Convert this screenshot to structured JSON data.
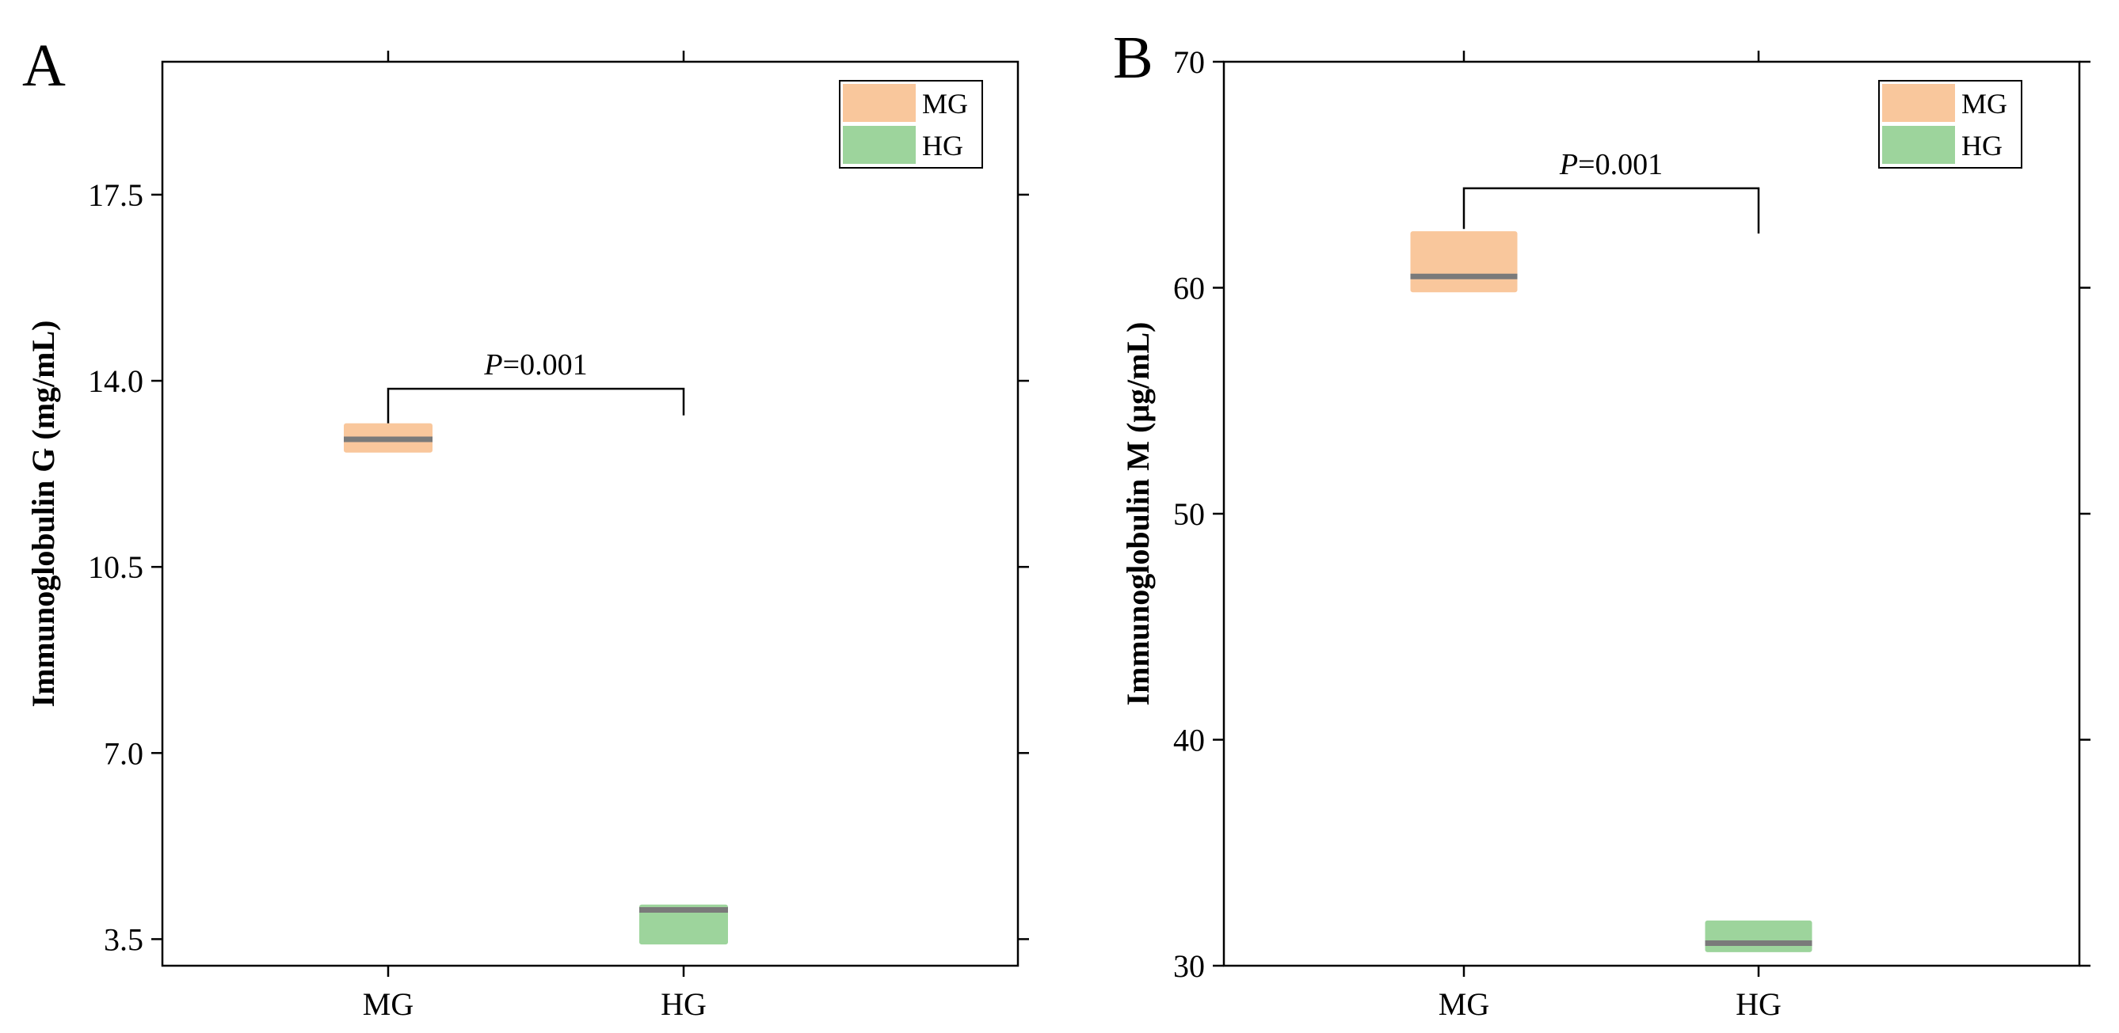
{
  "colors": {
    "MG": "#f9c79c",
    "HG": "#9dd49c",
    "median": "#7a7a7a",
    "axis": "#000000"
  },
  "chart_data": [
    {
      "type": "box",
      "panel_label": "A",
      "ylabel": "Immunoglobulin G (mg/mL)",
      "xlabel": "",
      "categories": [
        "MG",
        "HG"
      ],
      "ylim": [
        3.0,
        20.0
      ],
      "yticks": [
        3.5,
        7.0,
        10.5,
        14.0,
        17.5
      ],
      "ytick_labels": [
        "3.5",
        "7.0",
        "10.5",
        "14.0",
        "17.5"
      ],
      "boxes": [
        {
          "name": "MG",
          "q1": 12.65,
          "median": 12.9,
          "q3": 13.2,
          "min": 12.6,
          "max": 13.25
        },
        {
          "name": "HG",
          "q1": 3.4,
          "median": 4.05,
          "q3": 4.15,
          "min": 3.4,
          "max": 4.2
        }
      ],
      "legend": [
        "MG",
        "HG"
      ],
      "annotation": {
        "italic": "P",
        "text": "=0.001",
        "y_bracket": 13.85,
        "y_left_end": 13.2,
        "y_right_end": 13.35
      }
    },
    {
      "type": "box",
      "panel_label": "B",
      "ylabel": "Immunoglobulin M (μg/mL)",
      "xlabel": "",
      "categories": [
        "MG",
        "HG"
      ],
      "ylim": [
        30,
        70
      ],
      "yticks": [
        30,
        40,
        50,
        60,
        70
      ],
      "ytick_labels": [
        "30",
        "40",
        "50",
        "60",
        "70"
      ],
      "boxes": [
        {
          "name": "MG",
          "q1": 59.8,
          "median": 60.5,
          "q3": 62.5,
          "min": 59.8,
          "max": 62.5
        },
        {
          "name": "HG",
          "q1": 30.6,
          "median": 31.0,
          "q3": 32.0,
          "min": 30.6,
          "max": 32.0
        }
      ],
      "legend": [
        "MG",
        "HG"
      ],
      "annotation": {
        "italic": "P",
        "text": "=0.001",
        "y_bracket": 64.4,
        "y_left_end": 62.6,
        "y_right_end": 62.4
      }
    }
  ]
}
